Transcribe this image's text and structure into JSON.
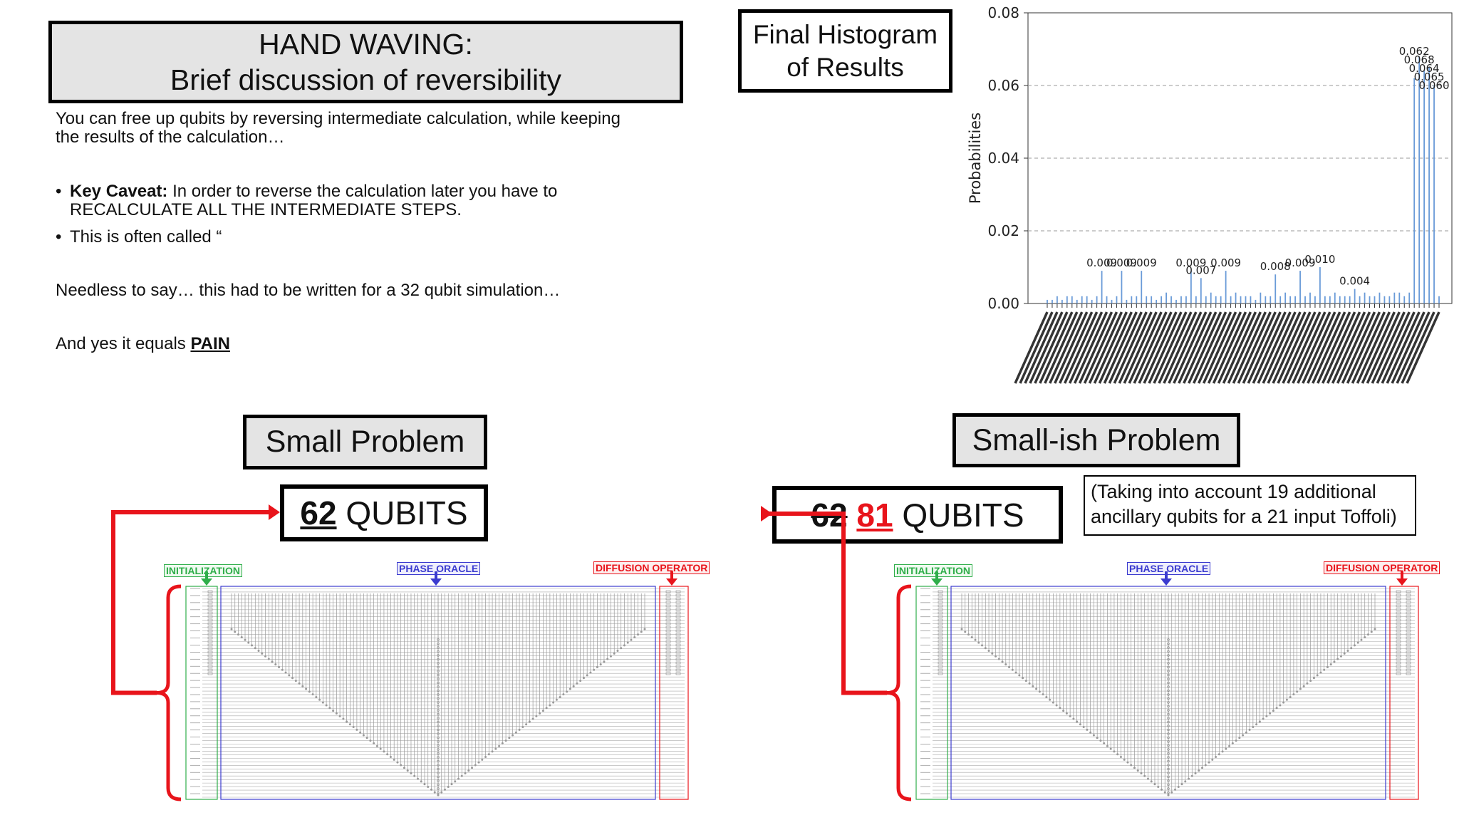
{
  "slide": {
    "title_line1": "HAND WAVING:",
    "title_line2": "Brief discussion of reversibility",
    "intro_line1": "You can free up qubits by reversing intermediate calculation, while keeping",
    "intro_line2": "the results of the calculation…",
    "caveat_bold": "Key Caveat:",
    "caveat_rest1": " In order to reverse the calculation later you have to",
    "caveat_rest2": "RECALCULATE ALL THE INTERMEDIATE STEPS.",
    "often_called": "This is often called “",
    "needless": "Needless to say… this had to be written for a 32 qubit simulation…",
    "pain_prefix": "And yes it equals ",
    "pain_word": "PAIN",
    "final_hist_line1": "Final Histogram",
    "final_hist_line2": "of Results",
    "small_problem": "Small Problem",
    "smallish_problem": "Small-ish Problem",
    "q1_number": "62",
    "q1_suffix": " QUBITS",
    "q2_old": "62",
    "q2_new": "81",
    "q2_suffix": " QUBITS",
    "note_line1": "(Taking into account 19 additional",
    "note_line2": "ancillary qubits for a 21 input Toffoli)",
    "label_init": "INITIALIZATION",
    "label_oracle": "PHASE ORACLE",
    "label_diffusion": "DIFFUSION OPERATOR"
  },
  "colors": {
    "init": "#2fae4a",
    "oracle": "#3b3bcf",
    "diffusion": "#e8141b",
    "bar": "#6a9bd8"
  },
  "chart_data": {
    "type": "bar",
    "ylabel": "Probabilities",
    "ylim": [
      0,
      0.08
    ],
    "yticks": [
      "0.00",
      "0.02",
      "0.04",
      "0.06",
      "0.08"
    ],
    "grid": true,
    "n_bars": 80,
    "values": [
      0.001,
      0.001,
      0.002,
      0.001,
      0.002,
      0.002,
      0.001,
      0.002,
      0.002,
      0.001,
      0.002,
      0.009,
      0.002,
      0.001,
      0.002,
      0.009,
      0.001,
      0.002,
      0.002,
      0.009,
      0.002,
      0.002,
      0.001,
      0.002,
      0.003,
      0.002,
      0.001,
      0.002,
      0.002,
      0.009,
      0.002,
      0.007,
      0.002,
      0.003,
      0.002,
      0.002,
      0.009,
      0.002,
      0.003,
      0.002,
      0.002,
      0.002,
      0.001,
      0.003,
      0.002,
      0.002,
      0.008,
      0.002,
      0.003,
      0.002,
      0.002,
      0.009,
      0.002,
      0.003,
      0.002,
      0.01,
      0.002,
      0.002,
      0.003,
      0.002,
      0.002,
      0.002,
      0.004,
      0.002,
      0.003,
      0.002,
      0.002,
      0.003,
      0.002,
      0.002,
      0.003,
      0.003,
      0.002,
      0.003,
      0.062,
      0.068,
      0.064,
      0.065,
      0.06,
      0.002
    ],
    "data_labels": [
      {
        "index": 11,
        "text": "0.009"
      },
      {
        "index": 15,
        "text": "0.009"
      },
      {
        "index": 19,
        "text": "0.009"
      },
      {
        "index": 29,
        "text": "0.009"
      },
      {
        "index": 31,
        "text": "0.007"
      },
      {
        "index": 36,
        "text": "0.009"
      },
      {
        "index": 46,
        "text": "0.008"
      },
      {
        "index": 51,
        "text": "0.009"
      },
      {
        "index": 55,
        "text": "0.010"
      },
      {
        "index": 62,
        "text": "0.004"
      },
      {
        "index": 74,
        "text": "0.062"
      },
      {
        "index": 75,
        "text": "0.068"
      },
      {
        "index": 76,
        "text": "0.064"
      },
      {
        "index": 77,
        "text": "0.065"
      },
      {
        "index": 78,
        "text": "0.060"
      }
    ]
  }
}
